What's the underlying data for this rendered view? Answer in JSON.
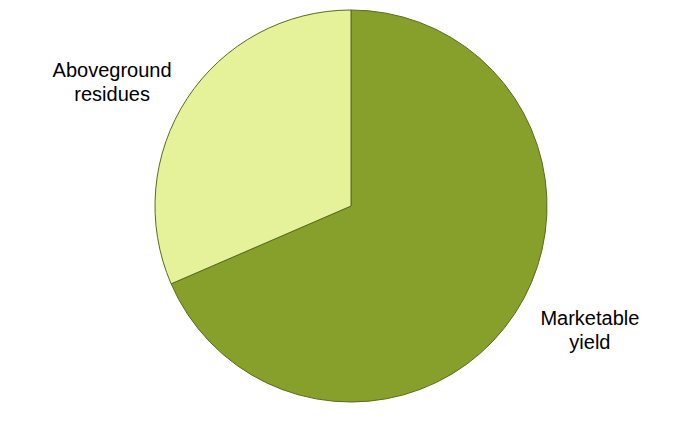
{
  "chart_data": {
    "type": "pie",
    "categories": [
      "Marketable yield",
      "Aboveground residues"
    ],
    "values": [
      68.5,
      31.5
    ],
    "colors": [
      "#86a02b",
      "#e5f29a"
    ]
  }
}
